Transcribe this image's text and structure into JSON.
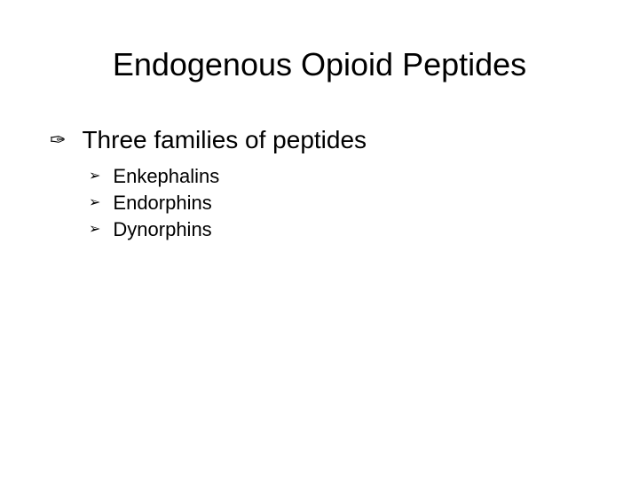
{
  "slide": {
    "title": "Endogenous Opioid Peptides",
    "title_color": "#000000",
    "title_fontsize": 36,
    "background_color": "#ffffff",
    "main_bullet": {
      "icon": "✑",
      "text": "Three families of peptides",
      "fontsize": 28,
      "color": "#000000"
    },
    "sub_bullets": [
      {
        "icon": "➢",
        "text": "Enkephalins"
      },
      {
        "icon": "➢",
        "text": "Endorphins"
      },
      {
        "icon": "➢",
        "text": "Dynorphins"
      }
    ],
    "sub_bullet_fontsize": 22,
    "sub_bullet_color": "#000000"
  }
}
